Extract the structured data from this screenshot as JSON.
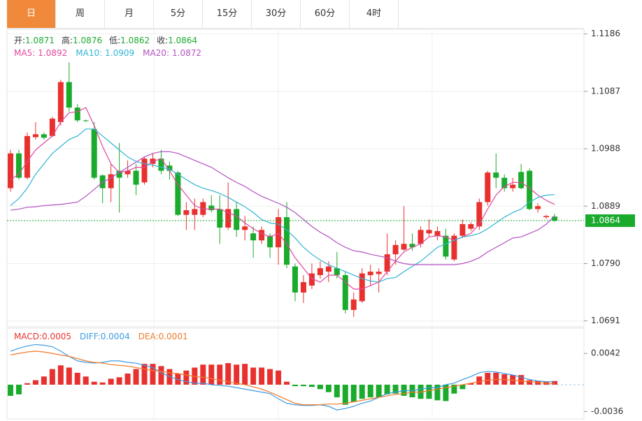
{
  "tabs": [
    "日",
    "周",
    "月",
    "5分",
    "15分",
    "30分",
    "60分",
    "4时"
  ],
  "active_tab": 0,
  "chart_data": [
    {
      "type": "candlestick",
      "legend": {
        "ohlc": [
          {
            "label": "开:",
            "value": 1.0871
          },
          {
            "label": "高:",
            "value": 1.0876
          },
          {
            "label": "低:",
            "value": 1.0862
          },
          {
            "label": "收:",
            "value": 1.0864
          }
        ],
        "ohlc_color": "#1aaa2c",
        "ma": [
          {
            "label": "MA5:",
            "value": 1.0892
          },
          {
            "label": "MA10:",
            "value": 1.0909
          },
          {
            "label": "MA20:",
            "value": 1.0872
          }
        ]
      },
      "ylim": [
        1.0681,
        1.1194
      ],
      "yticks": [
        1.1186,
        1.1087,
        1.0988,
        1.0889,
        1.079,
        1.0691
      ],
      "ytick_labels": [
        "1.1186",
        "1.1087",
        "1.0988",
        "1.0889",
        "1.0790",
        "1.0691"
      ],
      "grid": true,
      "up_color": "#e8312f",
      "down_color": "#1aaa2c",
      "last_price": 1.0864,
      "last_price_label": "1.0864",
      "candles": [
        [
          1.092,
          1.0986,
          1.0914,
          1.098
        ],
        [
          1.098,
          1.0986,
          1.0935,
          1.0938
        ],
        [
          1.0938,
          1.1016,
          1.0935,
          1.101
        ],
        [
          1.1008,
          1.1034,
          1.1004,
          1.1013
        ],
        [
          1.1013,
          1.1016,
          1.1004,
          1.1007
        ],
        [
          1.101,
          1.1043,
          1.1008,
          1.104
        ],
        [
          1.1034,
          1.1107,
          1.1028,
          1.1103
        ],
        [
          1.1103,
          1.1137,
          1.1052,
          1.1059
        ],
        [
          1.1059,
          1.1065,
          1.1034,
          1.1037
        ],
        [
          1.1037,
          1.1038,
          1.1034,
          1.1036
        ],
        [
          1.1022,
          1.1034,
          1.0935,
          1.0938
        ],
        [
          1.0942,
          1.0944,
          1.0894,
          1.092
        ],
        [
          1.092,
          1.0962,
          1.0896,
          1.0944
        ],
        [
          1.095,
          1.0998,
          1.0878,
          1.0938
        ],
        [
          1.0944,
          1.0968,
          1.0938,
          1.095
        ],
        [
          1.095,
          1.0962,
          1.0908,
          1.0926
        ],
        [
          1.093,
          1.0974,
          1.0926,
          1.0971
        ],
        [
          1.0962,
          1.098,
          1.0956,
          1.0971
        ],
        [
          1.0971,
          1.0986,
          1.0944,
          1.095
        ],
        [
          1.0959,
          1.0966,
          1.0935,
          1.095
        ],
        [
          1.0947,
          1.095,
          1.0872,
          1.0874
        ],
        [
          1.0874,
          1.0896,
          1.0848,
          1.0882
        ],
        [
          1.0874,
          1.0902,
          1.0848,
          1.0884
        ],
        [
          1.0874,
          1.0902,
          1.087,
          1.0896
        ],
        [
          1.089,
          1.0908,
          1.0878,
          1.0882
        ],
        [
          1.0884,
          1.0908,
          1.0824,
          1.0852
        ],
        [
          1.0852,
          1.093,
          1.0848,
          1.0884
        ],
        [
          1.0884,
          1.0896,
          1.0836,
          1.0848
        ],
        [
          1.0848,
          1.0872,
          1.083,
          1.0854
        ],
        [
          1.0842,
          1.0854,
          1.08,
          1.083
        ],
        [
          1.083,
          1.0854,
          1.0824,
          1.0848
        ],
        [
          1.0838,
          1.0842,
          1.08,
          1.0818
        ],
        [
          1.0818,
          1.0884,
          1.0788,
          1.087
        ],
        [
          1.087,
          1.0896,
          1.0782,
          1.0788
        ],
        [
          1.0785,
          1.079,
          1.0725,
          1.074
        ],
        [
          1.074,
          1.077,
          1.0722,
          1.0758
        ],
        [
          1.0752,
          1.079,
          1.0746,
          1.0773
        ],
        [
          1.077,
          1.0794,
          1.0764,
          1.0782
        ],
        [
          1.0776,
          1.0794,
          1.0758,
          1.0785
        ],
        [
          1.0782,
          1.081,
          1.0764,
          1.077
        ],
        [
          1.077,
          1.0776,
          1.0704,
          1.071
        ],
        [
          1.071,
          1.074,
          1.0698,
          1.0728
        ],
        [
          1.0725,
          1.0782,
          1.0722,
          1.0773
        ],
        [
          1.077,
          1.0788,
          1.0752,
          1.0776
        ],
        [
          1.0772,
          1.0782,
          1.074,
          1.0776
        ],
        [
          1.0776,
          1.0842,
          1.077,
          1.0806
        ],
        [
          1.0806,
          1.083,
          1.0788,
          1.0822
        ],
        [
          1.0814,
          1.0889,
          1.0812,
          1.0824
        ],
        [
          1.0824,
          1.0842,
          1.0812,
          1.0818
        ],
        [
          1.0824,
          1.0854,
          1.0818,
          1.0848
        ],
        [
          1.0842,
          1.0866,
          1.0836,
          1.0848
        ],
        [
          1.0838,
          1.0854,
          1.083,
          1.0846
        ],
        [
          1.0838,
          1.085,
          1.0797,
          1.0802
        ],
        [
          1.0797,
          1.0842,
          1.0794,
          1.0838
        ],
        [
          1.0838,
          1.0866,
          1.0834,
          1.0858
        ],
        [
          1.085,
          1.0862,
          1.0846,
          1.0858
        ],
        [
          1.0854,
          1.0902,
          1.0848,
          1.0896
        ],
        [
          1.0896,
          1.095,
          1.089,
          1.0947
        ],
        [
          1.0947,
          1.098,
          1.092,
          1.0938
        ],
        [
          1.0938,
          1.0944,
          1.0914,
          1.092
        ],
        [
          1.092,
          1.0938,
          1.0914,
          1.0926
        ],
        [
          1.0948,
          1.0962,
          1.0918,
          1.092
        ],
        [
          1.095,
          1.0954,
          1.0882,
          1.0884
        ],
        [
          1.0884,
          1.0894,
          1.0878,
          1.0889
        ],
        [
          1.087,
          1.0874,
          1.0867,
          1.0872
        ],
        [
          1.0871,
          1.0876,
          1.0862,
          1.0864
        ]
      ],
      "series": [
        {
          "name": "MA5",
          "color": "#e0479e",
          "values": [
            1.0935,
            1.0944,
            1.0966,
            1.0986,
            1.0998,
            1.101,
            1.1034,
            1.105,
            1.1052,
            1.1059,
            1.1028,
            1.0992,
            1.0962,
            1.0947,
            1.095,
            1.0956,
            1.0956,
            1.0966,
            1.0971,
            1.095,
            1.0926,
            1.0908,
            1.089,
            1.0884,
            1.0884,
            1.0884,
            1.0878,
            1.0872,
            1.086,
            1.085,
            1.0842,
            1.0836,
            1.0842,
            1.0824,
            1.08,
            1.0782,
            1.0764,
            1.0758,
            1.077,
            1.077,
            1.0758,
            1.0746,
            1.0746,
            1.0752,
            1.0758,
            1.0776,
            1.0794,
            1.081,
            1.0818,
            1.0824,
            1.0836,
            1.0838,
            1.0836,
            1.083,
            1.0836,
            1.0842,
            1.0858,
            1.0884,
            1.0908,
            1.0923,
            1.093,
            1.093,
            1.092,
            1.0908,
            1.0899,
            1.0892
          ]
        },
        {
          "name": "MA10",
          "color": "#30b5d3",
          "values": [
            1.089,
            1.0902,
            1.092,
            1.0944,
            1.0962,
            1.098,
            1.0992,
            1.1004,
            1.101,
            1.1022,
            1.1022,
            1.101,
            1.0998,
            1.0986,
            1.0974,
            1.0966,
            1.0962,
            1.096,
            1.0956,
            1.0953,
            1.0944,
            1.0935,
            1.0926,
            1.092,
            1.0916,
            1.0911,
            1.0904,
            1.0896,
            1.0888,
            1.0878,
            1.0866,
            1.086,
            1.0858,
            1.0848,
            1.0834,
            1.0818,
            1.0806,
            1.0796,
            1.0788,
            1.0782,
            1.0776,
            1.077,
            1.0764,
            1.076,
            1.0758,
            1.0764,
            1.0766,
            1.0776,
            1.0785,
            1.0794,
            1.0806,
            1.0818,
            1.0824,
            1.083,
            1.0836,
            1.0838,
            1.0842,
            1.085,
            1.086,
            1.087,
            1.0878,
            1.0884,
            1.0896,
            1.0904,
            1.0908,
            1.0909
          ]
        },
        {
          "name": "MA20",
          "color": "#b452c2",
          "values": [
            1.0882,
            1.0884,
            1.0887,
            1.0888,
            1.089,
            1.0891,
            1.0892,
            1.0894,
            1.0896,
            1.0906,
            1.0918,
            1.093,
            1.0938,
            1.0947,
            1.0956,
            1.0965,
            1.0974,
            1.098,
            1.0983,
            1.0983,
            1.098,
            1.0974,
            1.0968,
            1.0962,
            1.0956,
            1.0947,
            1.0938,
            1.093,
            1.0923,
            1.0914,
            1.0906,
            1.09,
            1.0894,
            1.0887,
            1.0878,
            1.0866,
            1.0854,
            1.0844,
            1.0836,
            1.0826,
            1.0818,
            1.0812,
            1.081,
            1.0806,
            1.0803,
            1.08,
            1.0794,
            1.079,
            1.0788,
            1.0788,
            1.0788,
            1.0788,
            1.0788,
            1.0788,
            1.079,
            1.0794,
            1.08,
            1.081,
            1.0818,
            1.0826,
            1.0834,
            1.0836,
            1.0842,
            1.0848,
            1.0858,
            1.0872
          ]
        }
      ]
    },
    {
      "type": "macd",
      "legend": [
        {
          "label": "MACD:",
          "value": 0.0005,
          "color": "#e8312f"
        },
        {
          "label": "DIFF:",
          "value": 0.0004,
          "color": "#3d9be0"
        },
        {
          "label": "DEA:",
          "value": 0.0001,
          "color": "#f07a2a"
        }
      ],
      "ylim": [
        -0.0046,
        0.0076
      ],
      "yticks": [
        0.0042,
        -0.0036
      ],
      "up_color": "#e8312f",
      "down_color": "#1aaa2c",
      "histogram": [
        -0.0015,
        -0.0013,
        0.0002,
        0.0006,
        0.0011,
        0.0021,
        0.0026,
        0.0023,
        0.0016,
        0.0011,
        0.0004,
        0.0003,
        0.0008,
        0.001,
        0.0015,
        0.0021,
        0.0028,
        0.0028,
        0.0025,
        0.0021,
        0.0015,
        0.0019,
        0.0023,
        0.0027,
        0.0027,
        0.0027,
        0.0029,
        0.0027,
        0.0028,
        0.0023,
        0.0023,
        0.0021,
        0.0019,
        0.0004,
        -0.0002,
        -0.0002,
        -0.0003,
        -0.0006,
        -0.001,
        -0.0017,
        -0.0027,
        -0.0023,
        -0.0019,
        -0.0017,
        -0.0017,
        -0.0013,
        -0.0012,
        -0.0015,
        -0.0017,
        -0.0019,
        -0.0019,
        -0.0021,
        -0.0022,
        -0.0012,
        -0.0006,
        0.0002,
        0.0011,
        0.0016,
        0.0016,
        0.0014,
        0.0013,
        0.0013,
        0.0006,
        0.0005,
        0.0004,
        0.0005
      ],
      "series": [
        {
          "name": "DIFF",
          "color": "#3d9be0",
          "values": [
            0.0045,
            0.0049,
            0.0052,
            0.0054,
            0.0053,
            0.0051,
            0.0045,
            0.0038,
            0.0032,
            0.003,
            0.0029,
            0.003,
            0.0032,
            0.0032,
            0.003,
            0.0029,
            0.0026,
            0.0023,
            0.0016,
            0.0011,
            0.0007,
            0.0004,
            0.0002,
            0.0002,
            0,
            -0.0001,
            -0.0002,
            -0.0004,
            -0.0006,
            -0.0008,
            -0.001,
            -0.0012,
            -0.0019,
            -0.0025,
            -0.0027,
            -0.0028,
            -0.0028,
            -0.0027,
            -0.0029,
            -0.0034,
            -0.0032,
            -0.0029,
            -0.0025,
            -0.0022,
            -0.0017,
            -0.0012,
            -0.001,
            -0.0008,
            -0.0008,
            -0.0006,
            -0.0004,
            -0.0004,
            0,
            0.0002,
            0.0007,
            0.0011,
            0.0016,
            0.0018,
            0.0017,
            0.0015,
            0.0013,
            0.001,
            0.0007,
            0.0005,
            0.0004,
            0.0004
          ]
        },
        {
          "name": "DEA",
          "color": "#f07a2a",
          "values": [
            0.004,
            0.0042,
            0.0044,
            0.0045,
            0.0044,
            0.0042,
            0.004,
            0.0038,
            0.0035,
            0.0032,
            0.003,
            0.0029,
            0.0027,
            0.0026,
            0.0025,
            0.0023,
            0.0021,
            0.0019,
            0.0018,
            0.0016,
            0.0015,
            0.0013,
            0.0011,
            0.001,
            0.0008,
            0.0006,
            0.0004,
            0.0002,
            0,
            -0.0003,
            -0.0006,
            -0.001,
            -0.0015,
            -0.002,
            -0.0025,
            -0.0027,
            -0.0027,
            -0.0027,
            -0.0026,
            -0.0026,
            -0.0025,
            -0.0023,
            -0.0021,
            -0.0019,
            -0.0017,
            -0.0015,
            -0.0013,
            -0.0012,
            -0.001,
            -0.001,
            -0.0008,
            -0.0006,
            -0.0004,
            -0.0002,
            0,
            0.0002,
            0.0004,
            0.0006,
            0.0007,
            0.0007,
            0.0006,
            0.0005,
            0.0004,
            0.0003,
            0.0002,
            0.0001
          ]
        }
      ]
    }
  ]
}
